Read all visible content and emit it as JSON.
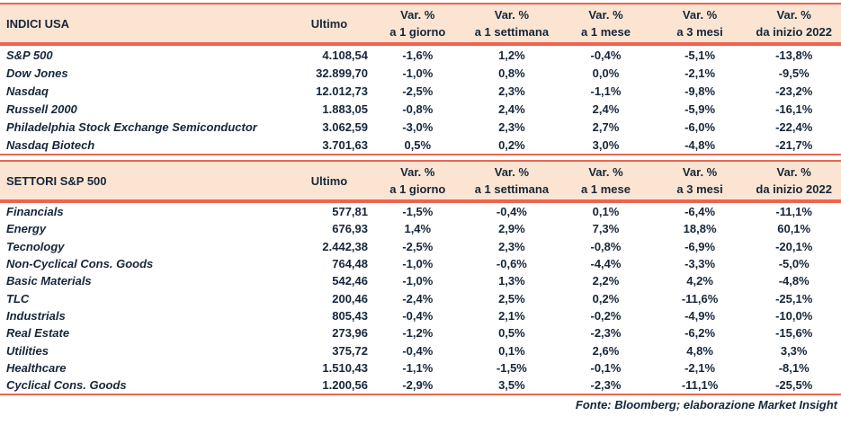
{
  "colors": {
    "accent": "#EE6450",
    "header_bg": "#FBE5D2",
    "text": "#16263A"
  },
  "var_headers": [
    {
      "l1": "Var. %",
      "l2": "a 1 giorno"
    },
    {
      "l1": "Var. %",
      "l2": "a 1 settimana"
    },
    {
      "l1": "Var. %",
      "l2": "a 1 mese"
    },
    {
      "l1": "Var. %",
      "l2": "a 3 mesi"
    },
    {
      "l1": "Var. %",
      "l2": "da inizio 2022"
    }
  ],
  "tables": [
    {
      "title": "INDICI USA",
      "ultimo_label": "Ultimo",
      "rows": [
        {
          "name": "S&P 500",
          "ultimo": "4.108,54",
          "vars": [
            "-1,6%",
            "1,2%",
            "-0,4%",
            "-5,1%",
            "-13,8%"
          ]
        },
        {
          "name": "Dow Jones",
          "ultimo": "32.899,70",
          "vars": [
            "-1,0%",
            "0,8%",
            "0,0%",
            "-2,1%",
            "-9,5%"
          ]
        },
        {
          "name": "Nasdaq",
          "ultimo": "12.012,73",
          "vars": [
            "-2,5%",
            "2,3%",
            "-1,1%",
            "-9,8%",
            "-23,2%"
          ]
        },
        {
          "name": "Russell 2000",
          "ultimo": "1.883,05",
          "vars": [
            "-0,8%",
            "2,4%",
            "2,4%",
            "-5,9%",
            "-16,1%"
          ]
        },
        {
          "name": "Philadelphia Stock Exchange Semiconductor",
          "ultimo": "3.062,59",
          "vars": [
            "-3,0%",
            "2,3%",
            "2,7%",
            "-6,0%",
            "-22,4%"
          ]
        },
        {
          "name": "Nasdaq Biotech",
          "ultimo": "3.701,63",
          "vars": [
            "0,5%",
            "0,2%",
            "3,0%",
            "-4,8%",
            "-21,7%"
          ]
        }
      ]
    },
    {
      "title": "SETTORI S&P 500",
      "ultimo_label": "Ultimo",
      "rows": [
        {
          "name": "Financials",
          "ultimo": "577,81",
          "vars": [
            "-1,5%",
            "-0,4%",
            "0,1%",
            "-6,4%",
            "-11,1%"
          ]
        },
        {
          "name": "Energy",
          "ultimo": "676,93",
          "vars": [
            "1,4%",
            "2,9%",
            "7,3%",
            "18,8%",
            "60,1%"
          ]
        },
        {
          "name": "Tecnology",
          "ultimo": "2.442,38",
          "vars": [
            "-2,5%",
            "2,3%",
            "-0,8%",
            "-6,9%",
            "-20,1%"
          ]
        },
        {
          "name": "Non-Cyclical Cons. Goods",
          "ultimo": "764,48",
          "vars": [
            "-1,0%",
            "-0,6%",
            "-4,4%",
            "-3,3%",
            "-5,0%"
          ]
        },
        {
          "name": "Basic Materials",
          "ultimo": "542,46",
          "vars": [
            "-1,0%",
            "1,3%",
            "2,2%",
            "4,2%",
            "-4,8%"
          ]
        },
        {
          "name": "TLC",
          "ultimo": "200,46",
          "vars": [
            "-2,4%",
            "2,5%",
            "0,2%",
            "-11,6%",
            "-25,1%"
          ]
        },
        {
          "name": "Industrials",
          "ultimo": "805,43",
          "vars": [
            "-0,4%",
            "2,1%",
            "-0,2%",
            "-4,9%",
            "-10,0%"
          ]
        },
        {
          "name": "Real Estate",
          "ultimo": "273,96",
          "vars": [
            "-1,2%",
            "0,5%",
            "-2,3%",
            "-6,2%",
            "-15,6%"
          ]
        },
        {
          "name": "Utilities",
          "ultimo": "375,72",
          "vars": [
            "-0,4%",
            "0,1%",
            "2,6%",
            "4,8%",
            "3,3%"
          ]
        },
        {
          "name": "Healthcare",
          "ultimo": "1.510,43",
          "vars": [
            "-1,1%",
            "-1,5%",
            "-0,1%",
            "-2,1%",
            "-8,1%"
          ]
        },
        {
          "name": "Cyclical Cons. Goods",
          "ultimo": "1.200,56",
          "vars": [
            "-2,9%",
            "3,5%",
            "-2,3%",
            "-11,1%",
            "-25,5%"
          ]
        }
      ]
    }
  ],
  "footer": {
    "source": "Fonte: Bloomberg; elaborazione Market Insight"
  }
}
